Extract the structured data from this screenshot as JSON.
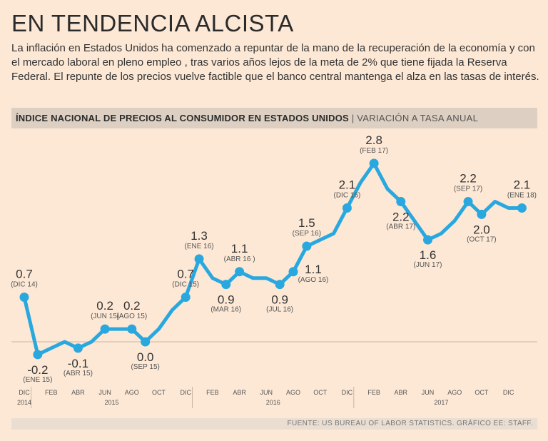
{
  "title": "EN TENDENCIA ALCISTA",
  "lead": "La inflación en Estados Unidos ha comenzado a repuntar de la mano de la recuperación de la economía y con el mercado laboral en pleno empleo , tras varios años lejos de la meta de 2% que tiene fijada la Reserva Federal. El repunte de los precios vuelve factible que el banco central mantenga el alza en las tasas de interés.",
  "chart_header": {
    "title": "ÍNDICE NACIONAL DE PRECIOS AL CONSUMIDOR EN ESTADOS UNIDOS",
    "separator": "|",
    "subtitle": "VARIACIÓN A TASA ANUAL"
  },
  "source": "FUENTE: US BUREAU OF LABOR STATISTICS.   GRÁFICO EE: STAFF.",
  "colors": {
    "background": "#fce8d5",
    "line": "#29a8e0",
    "header_band": "#ddd0c2",
    "baseline": "#c9b8a8"
  },
  "chart_data": {
    "type": "line",
    "title": "ÍNDICE NACIONAL DE PRECIOS AL CONSUMIDOR EN ESTADOS UNIDOS",
    "subtitle": "VARIACIÓN A TASA ANUAL",
    "x": [
      "2014-12",
      "2015-01",
      "2015-02",
      "2015-03",
      "2015-04",
      "2015-05",
      "2015-06",
      "2015-07",
      "2015-08",
      "2015-09",
      "2015-10",
      "2015-11",
      "2015-12",
      "2016-01",
      "2016-02",
      "2016-03",
      "2016-04",
      "2016-05",
      "2016-06",
      "2016-07",
      "2016-08",
      "2016-09",
      "2016-10",
      "2016-11",
      "2016-12",
      "2017-01",
      "2017-02",
      "2017-03",
      "2017-04",
      "2017-05",
      "2017-06",
      "2017-07",
      "2017-08",
      "2017-09",
      "2017-10",
      "2017-11",
      "2017-12",
      "2018-01"
    ],
    "series": [
      {
        "values": [
          0.7,
          -0.2,
          -0.1,
          0.0,
          -0.1,
          0.0,
          0.2,
          0.2,
          0.2,
          0.0,
          0.2,
          0.5,
          0.7,
          1.3,
          1.0,
          0.9,
          1.1,
          1.0,
          1.0,
          0.9,
          1.1,
          1.5,
          1.6,
          1.7,
          2.1,
          2.5,
          2.8,
          2.4,
          2.2,
          1.9,
          1.6,
          1.7,
          1.9,
          2.2,
          2.0,
          2.2,
          2.1,
          2.1
        ]
      }
    ],
    "zero_line": 0,
    "x_ticks": [
      "DIC",
      "FEB",
      "ABR",
      "JUN",
      "AGO",
      "OCT",
      "DIC",
      "FEB",
      "ABR",
      "JUN",
      "AGO",
      "OCT",
      "DIC",
      "FEB",
      "ABR",
      "JUN",
      "AGO",
      "OCT",
      "DIC"
    ],
    "year_labels": [
      "2014",
      "2015",
      "2016",
      "2017"
    ],
    "annotations": [
      {
        "value": "0.7",
        "label": "(DIC 14)",
        "index": 0
      },
      {
        "value": "-0.2",
        "label": "(ENE 15)",
        "index": 1
      },
      {
        "value": "-0.1",
        "label": "(ABR 15)",
        "index": 4
      },
      {
        "value": "0.2",
        "label": "(JUN 15)",
        "index": 6
      },
      {
        "value": "0.2",
        "label": "(AGO 15)",
        "index": 8
      },
      {
        "value": "0.0",
        "label": "(SEP 15)",
        "index": 9
      },
      {
        "value": "0.7",
        "label": "(DIC 15)",
        "index": 12
      },
      {
        "value": "1.3",
        "label": "(ENE 16)",
        "index": 13
      },
      {
        "value": "0.9",
        "label": "(MAR 16)",
        "index": 15
      },
      {
        "value": "1.1",
        "label": "(ABR 16 )",
        "index": 16
      },
      {
        "value": "0.9",
        "label": "(JUL 16)",
        "index": 19
      },
      {
        "value": "1.1",
        "label": "(AGO 16)",
        "index": 20
      },
      {
        "value": "1.5",
        "label": "(SEP 16)",
        "index": 21
      },
      {
        "value": "2.1",
        "label": "(DIC 16)",
        "index": 24
      },
      {
        "value": "2.8",
        "label": "(FEB 17)",
        "index": 26
      },
      {
        "value": "2.2",
        "label": "(ABR 17)",
        "index": 28
      },
      {
        "value": "1.6",
        "label": "(JUN 17)",
        "index": 30
      },
      {
        "value": "2.2",
        "label": "(SEP 17)",
        "index": 33
      },
      {
        "value": "2.0",
        "label": "(OCT 17)",
        "index": 34
      },
      {
        "value": "2.1",
        "label": "(ENE 18)",
        "index": 37
      }
    ],
    "grid": false,
    "legend": "none"
  }
}
